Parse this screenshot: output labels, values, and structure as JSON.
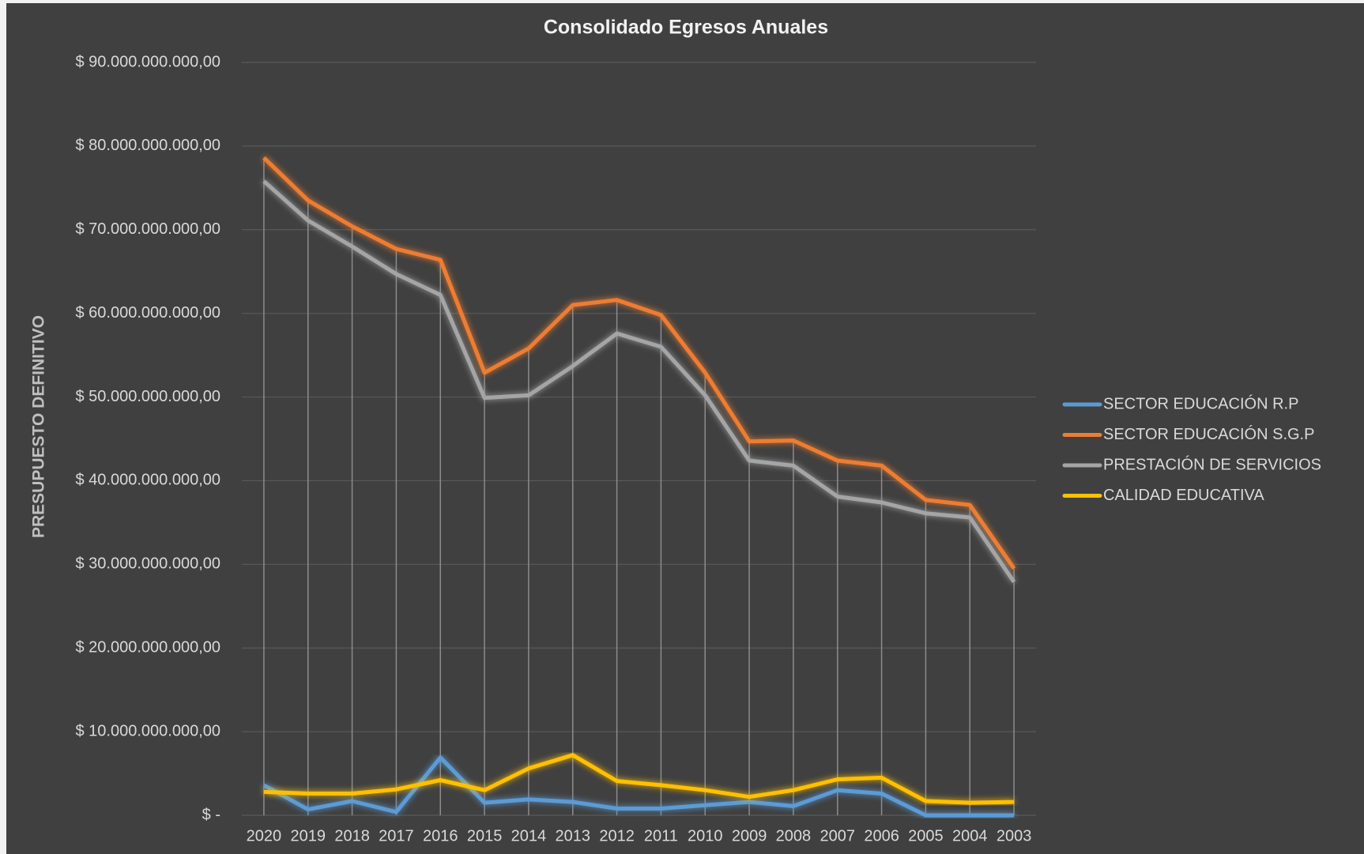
{
  "chart_data": {
    "type": "line",
    "title": "Consolidado Egresos Anuales",
    "y_label": "PRESUPUESTO DEFINITIVO",
    "categories": [
      "2020",
      "2019",
      "2018",
      "2017",
      "2016",
      "2015",
      "2014",
      "2013",
      "2012",
      "2011",
      "2010",
      "2009",
      "2008",
      "2007",
      "2006",
      "2005",
      "2004",
      "2003"
    ],
    "series": [
      {
        "name": "SECTOR EDUCACIÓN R.P",
        "color": "#5b9bd5",
        "values": [
          3600000000,
          700000000,
          1700000000,
          400000000,
          6900000000,
          1500000000,
          1900000000,
          1600000000,
          800000000,
          800000000,
          1200000000,
          1600000000,
          1100000000,
          3000000000,
          2600000000,
          0,
          0,
          0
        ]
      },
      {
        "name": "SECTOR EDUCACIÓN S.G.P",
        "color": "#ed7d31",
        "values": [
          78600000000,
          73500000000,
          70400000000,
          67700000000,
          66400000000,
          52900000000,
          55800000000,
          61000000000,
          61600000000,
          59800000000,
          52900000000,
          44700000000,
          44800000000,
          42400000000,
          41800000000,
          37700000000,
          37100000000,
          29500000000
        ]
      },
      {
        "name": "PRESTACIÓN DE SERVICIOS",
        "color": "#a5a5a5",
        "values": [
          75800000000,
          71100000000,
          68000000000,
          64700000000,
          62200000000,
          49900000000,
          50200000000,
          53700000000,
          57600000000,
          56000000000,
          50200000000,
          42400000000,
          41800000000,
          38100000000,
          37400000000,
          36100000000,
          35600000000,
          27900000000
        ]
      },
      {
        "name": "CALIDAD EDUCATIVA",
        "color": "#ffc000",
        "values": [
          2800000000,
          2600000000,
          2600000000,
          3100000000,
          4200000000,
          3000000000,
          5600000000,
          7200000000,
          4100000000,
          3600000000,
          3000000000,
          2200000000,
          3000000000,
          4300000000,
          4500000000,
          1700000000,
          1500000000,
          1600000000
        ]
      }
    ],
    "ylim": [
      0,
      90000000000
    ],
    "yticks": [
      {
        "value": 0,
        "label": "$ -"
      },
      {
        "value": 10000000000,
        "label": "$ 10.000.000.000,00"
      },
      {
        "value": 20000000000,
        "label": "$ 20.000.000.000,00"
      },
      {
        "value": 30000000000,
        "label": "$ 30.000.000.000,00"
      },
      {
        "value": 40000000000,
        "label": "$ 40.000.000.000,00"
      },
      {
        "value": 50000000000,
        "label": "$ 50.000.000.000,00"
      },
      {
        "value": 60000000000,
        "label": "$ 60.000.000.000,00"
      },
      {
        "value": 70000000000,
        "label": "$ 70.000.000.000,00"
      },
      {
        "value": 80000000000,
        "label": "$ 80.000.000.000,00"
      },
      {
        "value": 90000000000,
        "label": "$ 90.000.000.000,00"
      }
    ],
    "grid": true,
    "drop_lines": true,
    "legend": "right"
  }
}
